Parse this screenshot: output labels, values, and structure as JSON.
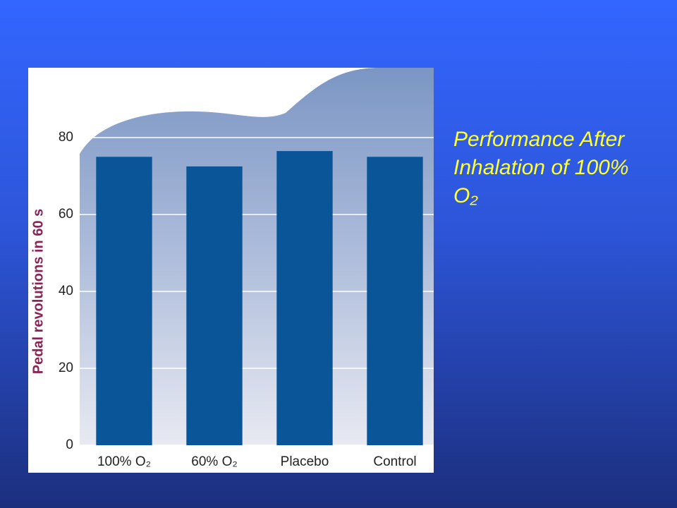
{
  "chart_data": {
    "type": "bar",
    "title": "Performance After Inhalation of 100% O₂",
    "y_label": "Pedal revolutions in 60 s",
    "categories": [
      "100% O₂",
      "60% O₂",
      "Placebo",
      "Control"
    ],
    "values": [
      75,
      72.5,
      76.5,
      75
    ],
    "color": "#0a5598",
    "ylim": [
      0,
      80
    ],
    "yticks": [
      0,
      20,
      40,
      60,
      80
    ],
    "grid": true
  }
}
